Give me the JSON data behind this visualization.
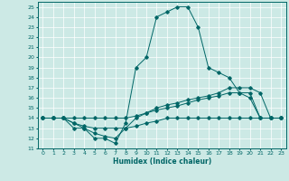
{
  "title": "",
  "xlabel": "Humidex (Indice chaleur)",
  "bg_color": "#cce9e5",
  "line_color": "#006666",
  "xlim": [
    -0.5,
    23.5
  ],
  "ylim": [
    11,
    25.5
  ],
  "xticks": [
    0,
    1,
    2,
    3,
    4,
    5,
    6,
    7,
    8,
    9,
    10,
    11,
    12,
    13,
    14,
    15,
    16,
    17,
    18,
    19,
    20,
    21,
    22,
    23
  ],
  "yticks": [
    11,
    12,
    13,
    14,
    15,
    16,
    17,
    18,
    19,
    20,
    21,
    22,
    23,
    24,
    25
  ],
  "lines": [
    {
      "x": [
        0,
        1,
        2,
        3,
        4,
        5,
        6,
        7,
        8,
        9,
        10,
        11,
        12,
        13,
        14,
        15,
        16,
        17,
        18,
        19,
        20,
        21,
        22,
        23
      ],
      "y": [
        14,
        14,
        14,
        13,
        13,
        12,
        12,
        11.5,
        13.5,
        19,
        20,
        24,
        24.5,
        25,
        25,
        23,
        19,
        18.5,
        18,
        16.5,
        16,
        14,
        14,
        14
      ],
      "markers": [
        0,
        1,
        2,
        3,
        4,
        5,
        6,
        7,
        8,
        9,
        10,
        11,
        12,
        13,
        14,
        15,
        16,
        17,
        18,
        19,
        20,
        21,
        22,
        23
      ]
    },
    {
      "x": [
        0,
        1,
        2,
        3,
        4,
        5,
        6,
        7,
        8,
        9,
        10,
        11,
        12,
        13,
        14,
        15,
        16,
        17,
        18,
        19,
        20,
        21,
        22,
        23
      ],
      "y": [
        14,
        14,
        14,
        13.5,
        13,
        12.5,
        12.2,
        12,
        13,
        14,
        14.5,
        15,
        15.3,
        15.5,
        15.8,
        16,
        16.2,
        16.5,
        17,
        17,
        17,
        16.5,
        14,
        14
      ],
      "markers": [
        0,
        1,
        2,
        3,
        4,
        5,
        6,
        7,
        8,
        9,
        10,
        11,
        12,
        13,
        14,
        15,
        16,
        17,
        18,
        19,
        20,
        21,
        22,
        23
      ]
    },
    {
      "x": [
        0,
        1,
        2,
        3,
        4,
        5,
        6,
        7,
        8,
        9,
        10,
        11,
        12,
        13,
        14,
        15,
        16,
        17,
        18,
        19,
        20,
        21,
        22,
        23
      ],
      "y": [
        14,
        14,
        14,
        13.5,
        13.2,
        13,
        13,
        13,
        13,
        13.2,
        13.5,
        13.7,
        14,
        14,
        14,
        14,
        14,
        14,
        14,
        14,
        14,
        14,
        14,
        14
      ],
      "markers": [
        0,
        1,
        2,
        3,
        4,
        5,
        6,
        7,
        8,
        9,
        10,
        11,
        12,
        13,
        14,
        15,
        16,
        17,
        18,
        19,
        20,
        21,
        22,
        23
      ]
    },
    {
      "x": [
        0,
        1,
        2,
        3,
        4,
        5,
        6,
        7,
        8,
        9,
        10,
        11,
        12,
        13,
        14,
        15,
        16,
        17,
        18,
        19,
        20,
        21,
        22,
        23
      ],
      "y": [
        14,
        14,
        14,
        14,
        14,
        14,
        14,
        14,
        14,
        14.2,
        14.5,
        14.8,
        15,
        15.2,
        15.5,
        15.8,
        16,
        16.2,
        16.5,
        16.5,
        16.5,
        14,
        14,
        14
      ],
      "markers": [
        0,
        1,
        2,
        3,
        4,
        5,
        6,
        7,
        8,
        9,
        10,
        11,
        12,
        13,
        14,
        15,
        16,
        17,
        18,
        19,
        20,
        21,
        22,
        23
      ]
    }
  ]
}
